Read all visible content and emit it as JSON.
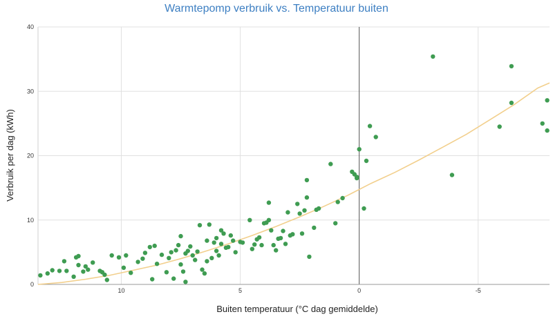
{
  "chart_data": {
    "type": "scatter",
    "title": "Warmtepomp verbruik vs. Temperatuur buiten",
    "xlabel": "Buiten temperatuur (°C dag gemiddelde)",
    "ylabel": "Verbruik per dag (kWh)",
    "x_reversed": true,
    "xlim": [
      13.5,
      -8
    ],
    "ylim": [
      0,
      40
    ],
    "x_ticks": [
      {
        "value": 10,
        "label": "10"
      },
      {
        "value": 5,
        "label": "5"
      },
      {
        "value": 0,
        "label": "0"
      },
      {
        "value": -5,
        "label": "-5"
      }
    ],
    "y_ticks": [
      {
        "value": 0,
        "label": "0"
      },
      {
        "value": 10,
        "label": "10"
      },
      {
        "value": 20,
        "label": "20"
      },
      {
        "value": 30,
        "label": "30"
      },
      {
        "value": 40,
        "label": "40"
      }
    ],
    "grid": true,
    "series": [
      {
        "type": "scatter",
        "color": "#3f9c52",
        "points": [
          [
            13.4,
            1.4
          ],
          [
            13.1,
            1.7
          ],
          [
            12.9,
            2.2
          ],
          [
            12.6,
            2.1
          ],
          [
            12.4,
            3.6
          ],
          [
            12.3,
            2.1
          ],
          [
            12.0,
            1.2
          ],
          [
            11.9,
            4.2
          ],
          [
            11.8,
            4.4
          ],
          [
            11.8,
            3.0
          ],
          [
            11.6,
            2.0
          ],
          [
            11.5,
            2.8
          ],
          [
            11.4,
            2.3
          ],
          [
            11.2,
            3.4
          ],
          [
            10.9,
            2.1
          ],
          [
            10.8,
            1.9
          ],
          [
            10.7,
            1.5
          ],
          [
            10.6,
            0.7
          ],
          [
            10.4,
            4.5
          ],
          [
            10.1,
            4.2
          ],
          [
            9.9,
            2.6
          ],
          [
            9.8,
            4.5
          ],
          [
            9.6,
            1.8
          ],
          [
            9.3,
            3.5
          ],
          [
            9.1,
            4.0
          ],
          [
            9.0,
            4.9
          ],
          [
            8.8,
            5.8
          ],
          [
            8.7,
            0.8
          ],
          [
            8.6,
            6.0
          ],
          [
            8.5,
            3.2
          ],
          [
            8.3,
            4.6
          ],
          [
            8.1,
            1.9
          ],
          [
            8.0,
            4.1
          ],
          [
            7.9,
            5.0
          ],
          [
            7.8,
            0.9
          ],
          [
            7.7,
            5.3
          ],
          [
            7.6,
            6.1
          ],
          [
            7.5,
            7.5
          ],
          [
            7.5,
            3.1
          ],
          [
            7.4,
            2.0
          ],
          [
            7.3,
            4.8
          ],
          [
            7.3,
            0.4
          ],
          [
            7.2,
            5.2
          ],
          [
            7.1,
            5.9
          ],
          [
            7.0,
            4.5
          ],
          [
            6.9,
            3.8
          ],
          [
            6.8,
            5.1
          ],
          [
            6.7,
            9.2
          ],
          [
            6.6,
            2.3
          ],
          [
            6.5,
            1.7
          ],
          [
            6.4,
            3.6
          ],
          [
            6.4,
            6.8
          ],
          [
            6.3,
            9.3
          ],
          [
            6.2,
            4.1
          ],
          [
            6.1,
            6.5
          ],
          [
            6.0,
            7.2
          ],
          [
            6.0,
            5.2
          ],
          [
            5.9,
            4.5
          ],
          [
            5.8,
            6.3
          ],
          [
            5.8,
            8.4
          ],
          [
            5.7,
            7.9
          ],
          [
            5.6,
            5.7
          ],
          [
            5.5,
            5.8
          ],
          [
            5.4,
            7.6
          ],
          [
            5.3,
            6.8
          ],
          [
            5.2,
            5.0
          ],
          [
            5.0,
            6.6
          ],
          [
            4.9,
            6.5
          ],
          [
            4.6,
            10.0
          ],
          [
            4.5,
            5.5
          ],
          [
            4.4,
            6.2
          ],
          [
            4.3,
            7.0
          ],
          [
            4.2,
            7.3
          ],
          [
            4.1,
            6.1
          ],
          [
            4.0,
            9.5
          ],
          [
            3.9,
            9.6
          ],
          [
            3.8,
            10.0
          ],
          [
            3.8,
            12.7
          ],
          [
            3.7,
            8.4
          ],
          [
            3.6,
            6.1
          ],
          [
            3.5,
            5.3
          ],
          [
            3.4,
            7.1
          ],
          [
            3.3,
            7.2
          ],
          [
            3.2,
            8.3
          ],
          [
            3.1,
            6.3
          ],
          [
            3.0,
            11.2
          ],
          [
            2.9,
            7.6
          ],
          [
            2.8,
            7.8
          ],
          [
            2.6,
            12.5
          ],
          [
            2.5,
            11.0
          ],
          [
            2.4,
            7.9
          ],
          [
            2.3,
            11.5
          ],
          [
            2.2,
            16.2
          ],
          [
            2.2,
            13.5
          ],
          [
            2.1,
            4.3
          ],
          [
            1.9,
            8.8
          ],
          [
            1.8,
            11.6
          ],
          [
            1.7,
            11.8
          ],
          [
            1.2,
            18.7
          ],
          [
            1.0,
            9.5
          ],
          [
            0.9,
            12.8
          ],
          [
            0.7,
            13.4
          ],
          [
            0.3,
            17.5
          ],
          [
            0.2,
            17.1
          ],
          [
            0.1,
            16.7
          ],
          [
            0.1,
            16.5
          ],
          [
            0.0,
            21.0
          ],
          [
            -0.2,
            11.8
          ],
          [
            -0.3,
            19.2
          ],
          [
            -0.45,
            24.6
          ],
          [
            -0.7,
            22.9
          ],
          [
            -3.1,
            35.4
          ],
          [
            -3.9,
            17.0
          ],
          [
            -5.9,
            24.5
          ],
          [
            -6.4,
            28.2
          ],
          [
            -6.4,
            33.9
          ],
          [
            -7.7,
            25.0
          ],
          [
            -7.9,
            28.6
          ],
          [
            -7.9,
            23.9
          ]
        ]
      },
      {
        "type": "fit",
        "color": "#f2cf8c",
        "curve": [
          [
            13.5,
            0.0
          ],
          [
            12.5,
            0.3
          ],
          [
            11.5,
            0.8
          ],
          [
            10.5,
            1.4
          ],
          [
            9.5,
            2.2
          ],
          [
            8.5,
            3.0
          ],
          [
            7.5,
            4.0
          ],
          [
            6.5,
            5.1
          ],
          [
            5.5,
            6.3
          ],
          [
            4.5,
            7.6
          ],
          [
            3.5,
            9.0
          ],
          [
            2.5,
            10.5
          ],
          [
            1.5,
            12.1
          ],
          [
            0.5,
            13.8
          ],
          [
            -0.5,
            15.7
          ],
          [
            -1.5,
            17.4
          ],
          [
            -2.5,
            19.3
          ],
          [
            -3.5,
            21.3
          ],
          [
            -4.5,
            23.3
          ],
          [
            -5.5,
            25.6
          ],
          [
            -6.5,
            27.9
          ],
          [
            -7.5,
            30.5
          ],
          [
            -8.0,
            31.3
          ]
        ]
      }
    ]
  }
}
